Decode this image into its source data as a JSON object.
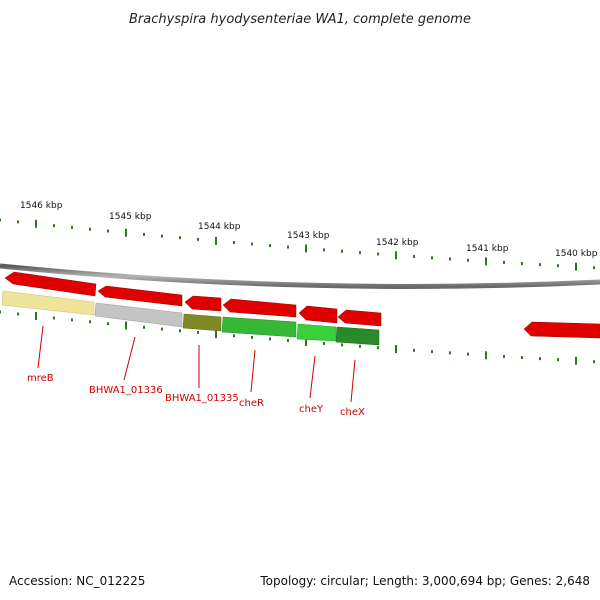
{
  "title": "Brachyspira hyodysenteriae WA1, complete genome",
  "scale_labels": [
    "1546 kbp",
    "1545 kbp",
    "1544 kbp",
    "1543 kbp",
    "1542 kbp",
    "1541 kbp",
    "1540 kbp"
  ],
  "gene_labels": [
    "mreB",
    "BHWA1_01336",
    "BHWA1_01335",
    "cheR",
    "cheY",
    "cheX"
  ],
  "footer": {
    "accession": "Accession: NC_012225",
    "summary": "Topology: circular; Length: 3,000,694 bp; Genes: 2,648"
  },
  "colors": {
    "cds_arrow": "#e00000",
    "backbone": "#8a8a8a",
    "tick": "#2d7a1e",
    "label": "#cc0000",
    "mreB_bar": "#efe59a",
    "BHWA1_01336_bar": "#c4c4c4",
    "BHWA1_01335_bar": "#7f8a25",
    "cheR_bar": "#36b736",
    "cheY_bar": "#39d139",
    "cheX_bar": "#2a8a2a"
  }
}
